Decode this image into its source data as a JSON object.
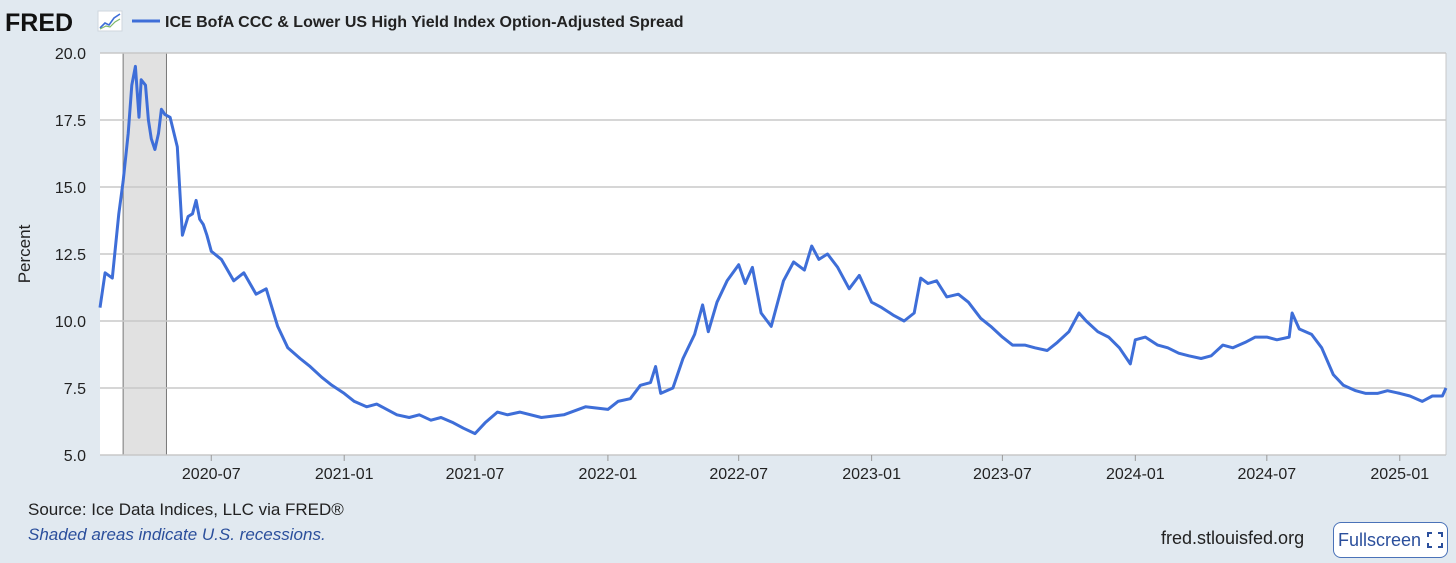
{
  "header": {
    "logo_text": "FRED",
    "logo_icon": "line-chart-icon",
    "legend_label": "ICE BofA CCC & Lower US High Yield Index Option-Adjusted Spread"
  },
  "footer": {
    "source": "Source: Ice Data Indices, LLC via FRED®",
    "shaded_note": "Shaded areas indicate U.S. recessions.",
    "site": "fred.stlouisfed.org",
    "fullscreen_label": "Fullscreen",
    "fullscreen_icon": "expand-icon"
  },
  "colors": {
    "line": "#3e6ed8",
    "recession_shade": "#e1e1e1",
    "background": "#e1e9f0",
    "plot_background": "#ffffff",
    "gridline": "#c8c8c8"
  },
  "chart_data": {
    "type": "line",
    "title": "",
    "xlabel": "",
    "ylabel": "Percent",
    "ylim": [
      5.0,
      20.0
    ],
    "y_ticks": [
      "5.0",
      "7.5",
      "10.0",
      "12.5",
      "15.0",
      "17.5",
      "20.0"
    ],
    "x_range": [
      "2020-01-29",
      "2025-03-06"
    ],
    "x_ticks": [
      "2020-07",
      "2021-01",
      "2021-07",
      "2022-01",
      "2022-07",
      "2023-01",
      "2023-07",
      "2024-01",
      "2024-07",
      "2025-01"
    ],
    "grid": true,
    "legend": "top-left",
    "recessions": [
      [
        "2020-03-01",
        "2020-04-30"
      ]
    ],
    "series": [
      {
        "name": "ICE BofA CCC & Lower US High Yield Index Option-Adjusted Spread",
        "x": [
          "2020-01-29",
          "2020-02-05",
          "2020-02-15",
          "2020-02-24",
          "2020-03-01",
          "2020-03-08",
          "2020-03-13",
          "2020-03-18",
          "2020-03-23",
          "2020-03-26",
          "2020-04-01",
          "2020-04-05",
          "2020-04-09",
          "2020-04-14",
          "2020-04-19",
          "2020-04-23",
          "2020-04-28",
          "2020-05-05",
          "2020-05-15",
          "2020-05-22",
          "2020-05-30",
          "2020-06-05",
          "2020-06-10",
          "2020-06-15",
          "2020-06-20",
          "2020-06-25",
          "2020-07-01",
          "2020-07-15",
          "2020-08-01",
          "2020-08-15",
          "2020-09-01",
          "2020-09-15",
          "2020-10-01",
          "2020-10-15",
          "2020-11-01",
          "2020-11-15",
          "2020-12-01",
          "2020-12-15",
          "2021-01-01",
          "2021-01-15",
          "2021-02-01",
          "2021-02-15",
          "2021-03-01",
          "2021-03-15",
          "2021-04-01",
          "2021-04-15",
          "2021-05-01",
          "2021-05-15",
          "2021-06-01",
          "2021-06-15",
          "2021-07-01",
          "2021-07-15",
          "2021-08-01",
          "2021-08-15",
          "2021-09-01",
          "2021-10-01",
          "2021-11-01",
          "2021-12-01",
          "2022-01-01",
          "2022-01-15",
          "2022-02-01",
          "2022-02-15",
          "2022-03-01",
          "2022-03-08",
          "2022-03-15",
          "2022-04-01",
          "2022-04-15",
          "2022-05-01",
          "2022-05-12",
          "2022-05-20",
          "2022-06-01",
          "2022-06-15",
          "2022-07-01",
          "2022-07-10",
          "2022-07-20",
          "2022-08-01",
          "2022-08-15",
          "2022-08-25",
          "2022-09-01",
          "2022-09-15",
          "2022-09-30",
          "2022-10-10",
          "2022-10-20",
          "2022-11-01",
          "2022-11-15",
          "2022-12-01",
          "2022-12-15",
          "2023-01-01",
          "2023-01-15",
          "2023-02-01",
          "2023-02-15",
          "2023-03-01",
          "2023-03-10",
          "2023-03-20",
          "2023-04-01",
          "2023-04-15",
          "2023-05-01",
          "2023-05-15",
          "2023-06-01",
          "2023-06-15",
          "2023-07-01",
          "2023-07-15",
          "2023-08-01",
          "2023-08-15",
          "2023-09-01",
          "2023-09-15",
          "2023-10-01",
          "2023-10-15",
          "2023-10-25",
          "2023-11-10",
          "2023-11-25",
          "2023-12-10",
          "2023-12-25",
          "2024-01-01",
          "2024-01-15",
          "2024-02-01",
          "2024-02-15",
          "2024-03-01",
          "2024-03-15",
          "2024-04-01",
          "2024-04-15",
          "2024-05-01",
          "2024-05-15",
          "2024-06-01",
          "2024-06-15",
          "2024-07-01",
          "2024-07-15",
          "2024-08-01",
          "2024-08-05",
          "2024-08-15",
          "2024-09-01",
          "2024-09-15",
          "2024-10-01",
          "2024-10-15",
          "2024-11-01",
          "2024-11-15",
          "2024-12-01",
          "2024-12-15",
          "2025-01-01",
          "2025-01-15",
          "2025-02-01",
          "2025-02-15",
          "2025-03-01",
          "2025-03-06"
        ],
        "values": [
          10.5,
          11.8,
          11.6,
          14.0,
          15.2,
          17.0,
          18.8,
          19.5,
          17.6,
          19.0,
          18.8,
          17.5,
          16.8,
          16.4,
          17.0,
          17.9,
          17.7,
          17.6,
          16.5,
          13.2,
          13.9,
          14.0,
          14.5,
          13.8,
          13.6,
          13.2,
          12.6,
          12.3,
          11.5,
          11.8,
          11.0,
          11.2,
          9.8,
          9.0,
          8.6,
          8.3,
          7.9,
          7.6,
          7.3,
          7.0,
          6.8,
          6.9,
          6.7,
          6.5,
          6.4,
          6.5,
          6.3,
          6.4,
          6.2,
          6.0,
          5.8,
          6.2,
          6.6,
          6.5,
          6.6,
          6.4,
          6.5,
          6.8,
          6.7,
          7.0,
          7.1,
          7.6,
          7.7,
          8.3,
          7.3,
          7.5,
          8.6,
          9.5,
          10.6,
          9.6,
          10.7,
          11.5,
          12.1,
          11.4,
          12.0,
          10.3,
          9.8,
          10.8,
          11.5,
          12.2,
          11.9,
          12.8,
          12.3,
          12.5,
          12.0,
          11.2,
          11.7,
          10.7,
          10.5,
          10.2,
          10.0,
          10.3,
          11.6,
          11.4,
          11.5,
          10.9,
          11.0,
          10.7,
          10.1,
          9.8,
          9.4,
          9.1,
          9.1,
          9.0,
          8.9,
          9.2,
          9.6,
          10.3,
          10.0,
          9.6,
          9.4,
          9.0,
          8.4,
          9.3,
          9.4,
          9.1,
          9.0,
          8.8,
          8.7,
          8.6,
          8.7,
          9.1,
          9.0,
          9.2,
          9.4,
          9.4,
          9.3,
          9.4,
          10.3,
          9.7,
          9.5,
          9.0,
          8.0,
          7.6,
          7.4,
          7.3,
          7.3,
          7.4,
          7.3,
          7.2,
          7.0,
          7.2,
          7.2,
          7.5
        ]
      }
    ]
  }
}
